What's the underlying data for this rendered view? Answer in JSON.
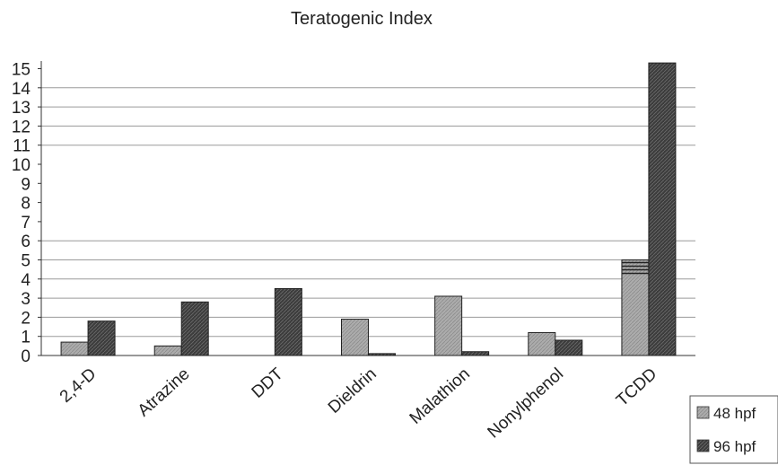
{
  "chart_data": {
    "type": "bar",
    "title": "Teratogenic Index",
    "xlabel": "",
    "ylabel": "",
    "categories": [
      "2,4-D",
      "Atrazine",
      "DDT",
      "Dieldrin",
      "Malathion",
      "Nonylphenol",
      "TCDD"
    ],
    "series": [
      {
        "name": "48 hpf",
        "values": [
          0.7,
          0.5,
          0,
          1.9,
          3.1,
          1.2,
          5.0
        ],
        "color": "#a8a8a8"
      },
      {
        "name": "96 hpf",
        "values": [
          1.8,
          2.8,
          3.5,
          0.1,
          0.2,
          0.8,
          15.3
        ],
        "color": "#3a3a3a"
      }
    ],
    "yticks": [
      0,
      1,
      2,
      3,
      4,
      5,
      6,
      7,
      8,
      9,
      10,
      11,
      12,
      13,
      14,
      15
    ],
    "gridlines": [
      0,
      1,
      2,
      3,
      4,
      5,
      6,
      11,
      12,
      13,
      14
    ],
    "grid": true,
    "legend": "bottom-right"
  }
}
